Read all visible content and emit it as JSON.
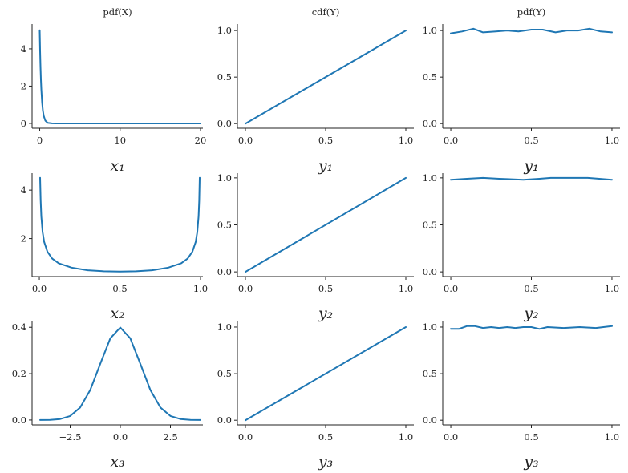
{
  "chart_data": [
    {
      "type": "line",
      "title": "pdf(X)",
      "xlabel": "x₁",
      "xlim": [
        -0.95,
        20.3
      ],
      "ylim": [
        -0.26,
        5.33
      ],
      "xticks": [
        0,
        10,
        20
      ],
      "xticklabels": [
        "0",
        "10",
        "20"
      ],
      "yticks": [
        0,
        2,
        4
      ],
      "yticklabels": [
        "0",
        "2",
        "4"
      ],
      "x": [
        0,
        0.05,
        0.1,
        0.15,
        0.2,
        0.3,
        0.4,
        0.5,
        0.7,
        1,
        1.5,
        2,
        5,
        10,
        20
      ],
      "y": [
        5,
        3.89,
        3.03,
        2.36,
        1.84,
        1.12,
        0.68,
        0.41,
        0.15,
        0.034,
        0.003,
        0,
        0,
        0,
        0
      ]
    },
    {
      "type": "line",
      "title": "cdf(Y)",
      "xlabel": "y₁",
      "xlim": [
        -0.05,
        1.05
      ],
      "ylim": [
        -0.05,
        1.07
      ],
      "xticks": [
        0,
        0.5,
        1
      ],
      "xticklabels": [
        "0.0",
        "0.5",
        "1.0"
      ],
      "yticks": [
        0,
        0.5,
        1
      ],
      "yticklabels": [
        "0.0",
        "0.5",
        "1.0"
      ],
      "x": [
        0,
        1
      ],
      "y": [
        0,
        1
      ]
    },
    {
      "type": "line",
      "title": "pdf(Y)",
      "xlabel": "y₁",
      "xlim": [
        -0.05,
        1.05
      ],
      "ylim": [
        -0.05,
        1.07
      ],
      "xticks": [
        0,
        0.5,
        1
      ],
      "xticklabels": [
        "0.0",
        "0.5",
        "1.0"
      ],
      "yticks": [
        0,
        0.5,
        1
      ],
      "yticklabels": [
        "0.0",
        "0.5",
        "1.0"
      ],
      "x": [
        0,
        0.07,
        0.14,
        0.2,
        0.28,
        0.35,
        0.42,
        0.5,
        0.57,
        0.65,
        0.72,
        0.79,
        0.86,
        0.93,
        1
      ],
      "y": [
        0.97,
        0.99,
        1.02,
        0.98,
        0.99,
        1.0,
        0.99,
        1.01,
        1.01,
        0.98,
        1.0,
        1.0,
        1.02,
        0.99,
        0.98
      ]
    },
    {
      "type": "line",
      "title": "",
      "xlabel": "x₂",
      "xlim": [
        -0.045,
        1.015
      ],
      "ylim": [
        0.43,
        4.7
      ],
      "xticks": [
        0,
        0.5,
        1
      ],
      "xticklabels": [
        "0.0",
        "0.5",
        "1.0"
      ],
      "yticks": [
        2,
        4
      ],
      "yticklabels": [
        "2",
        "4"
      ],
      "x": [
        0.005,
        0.008,
        0.012,
        0.02,
        0.03,
        0.05,
        0.08,
        0.12,
        0.2,
        0.3,
        0.4,
        0.5,
        0.6,
        0.7,
        0.8,
        0.88,
        0.92,
        0.95,
        0.97,
        0.98,
        0.988,
        0.992,
        0.995
      ],
      "y": [
        4.51,
        3.57,
        2.92,
        2.27,
        1.86,
        1.46,
        1.17,
        0.98,
        0.8,
        0.69,
        0.65,
        0.64,
        0.65,
        0.69,
        0.8,
        0.98,
        1.17,
        1.46,
        1.86,
        2.27,
        2.92,
        3.57,
        4.51
      ]
    },
    {
      "type": "line",
      "title": "",
      "xlabel": "y₂",
      "xlim": [
        -0.05,
        1.05
      ],
      "ylim": [
        -0.05,
        1.05
      ],
      "xticks": [
        0,
        0.5,
        1
      ],
      "xticklabels": [
        "0.0",
        "0.5",
        "1.0"
      ],
      "yticks": [
        0,
        0.5,
        1
      ],
      "yticklabels": [
        "0.0",
        "0.5",
        "1.0"
      ],
      "x": [
        0,
        1
      ],
      "y": [
        0,
        1
      ]
    },
    {
      "type": "line",
      "title": "",
      "xlabel": "y₂",
      "xlim": [
        -0.05,
        1.05
      ],
      "ylim": [
        -0.05,
        1.05
      ],
      "xticks": [
        0,
        0.5,
        1
      ],
      "xticklabels": [
        "0.0",
        "0.5",
        "1.0"
      ],
      "yticks": [
        0,
        0.5,
        1
      ],
      "yticklabels": [
        "0.0",
        "0.5",
        "1.0"
      ],
      "x": [
        0,
        0.1,
        0.2,
        0.3,
        0.45,
        0.55,
        0.62,
        0.75,
        0.85,
        1
      ],
      "y": [
        0.98,
        0.99,
        1.0,
        0.99,
        0.98,
        0.99,
        1.0,
        1.0,
        1.0,
        0.98
      ]
    },
    {
      "type": "line",
      "title": "",
      "xlabel": "x₃",
      "xlim": [
        -4.4,
        4.12
      ],
      "ylim": [
        -0.021,
        0.425
      ],
      "xticks": [
        -2.5,
        0,
        2.5
      ],
      "xticklabels": [
        "−2.5",
        "0.0",
        "2.5"
      ],
      "yticks": [
        0,
        0.2,
        0.4
      ],
      "yticklabels": [
        "0.0",
        "0.2",
        "0.4"
      ],
      "x": [
        -4,
        -3.5,
        -3,
        -2.5,
        -2,
        -1.5,
        -1,
        -0.5,
        0,
        0.5,
        1,
        1.5,
        2,
        2.5,
        3,
        3.5,
        4
      ],
      "y": [
        0.0001,
        0.0009,
        0.0044,
        0.0175,
        0.054,
        0.1295,
        0.242,
        0.352,
        0.399,
        0.352,
        0.242,
        0.1295,
        0.054,
        0.0175,
        0.0044,
        0.0009,
        0.0001
      ]
    },
    {
      "type": "line",
      "title": "",
      "xlabel": "y₃",
      "xlim": [
        -0.05,
        1.05
      ],
      "ylim": [
        -0.05,
        1.06
      ],
      "xticks": [
        0,
        0.5,
        1
      ],
      "xticklabels": [
        "0.0",
        "0.5",
        "1.0"
      ],
      "yticks": [
        0,
        0.5,
        1
      ],
      "yticklabels": [
        "0.0",
        "0.5",
        "1.0"
      ],
      "x": [
        0,
        1
      ],
      "y": [
        0,
        1
      ]
    },
    {
      "type": "line",
      "title": "",
      "xlabel": "y₃",
      "xlim": [
        -0.05,
        1.05
      ],
      "ylim": [
        -0.05,
        1.06
      ],
      "xticks": [
        0,
        0.5,
        1
      ],
      "xticklabels": [
        "0.0",
        "0.5",
        "1.0"
      ],
      "yticks": [
        0,
        0.5,
        1
      ],
      "yticklabels": [
        "0.0",
        "0.5",
        "1.0"
      ],
      "x": [
        0,
        0.05,
        0.1,
        0.15,
        0.2,
        0.25,
        0.3,
        0.35,
        0.4,
        0.45,
        0.5,
        0.55,
        0.6,
        0.7,
        0.8,
        0.9,
        1
      ],
      "y": [
        0.98,
        0.98,
        1.01,
        1.01,
        0.99,
        1.0,
        0.99,
        1.0,
        0.99,
        1.0,
        1.0,
        0.98,
        1.0,
        0.99,
        1.0,
        0.99,
        1.01
      ]
    }
  ],
  "colors": {
    "line": "#1f77b4",
    "axis": "#222222"
  }
}
